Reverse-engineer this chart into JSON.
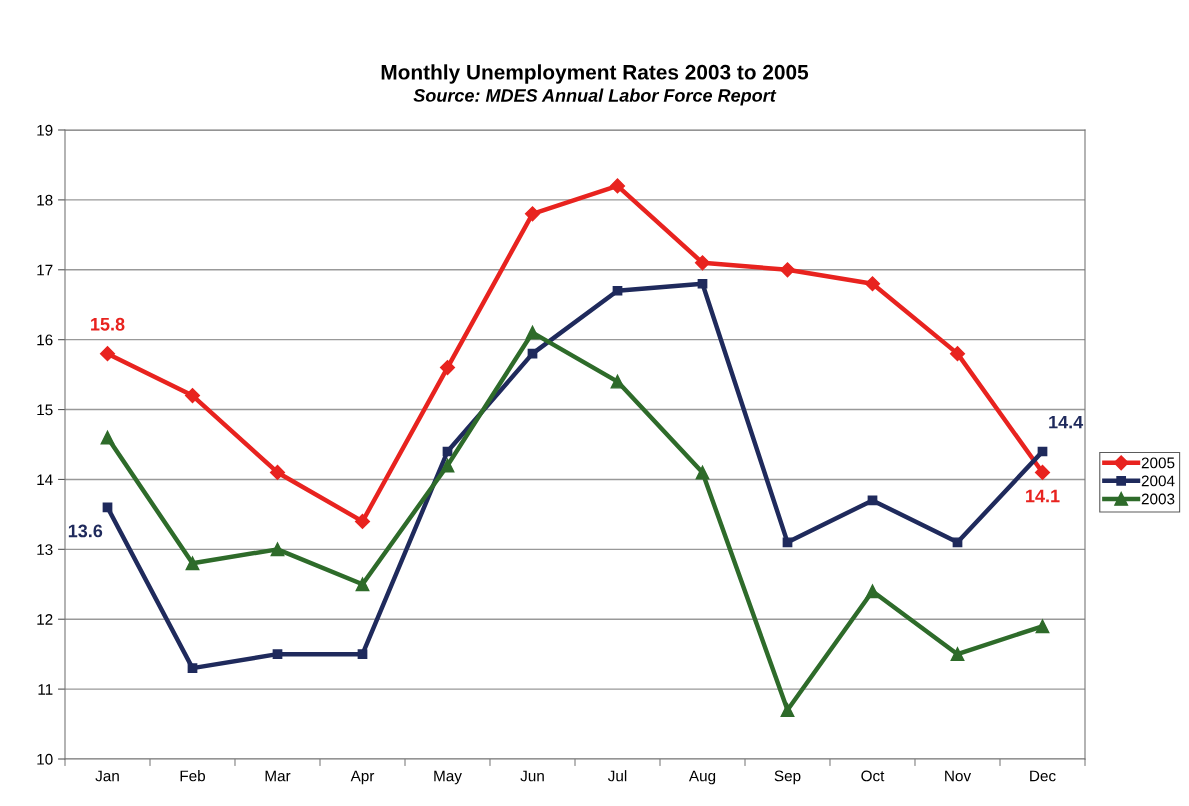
{
  "chart_data": {
    "type": "line",
    "title": "Monthly Unemployment Rates 2003 to 2005",
    "annotations": [
      "Source: MDES Annual Labor Force Report"
    ],
    "categories": [
      "Jan",
      "Feb",
      "Mar",
      "Apr",
      "May",
      "Jun",
      "Jul",
      "Aug",
      "Sep",
      "Oct",
      "Nov",
      "Dec"
    ],
    "series": [
      {
        "name": "2005",
        "color": "#e8231f",
        "marker": "diamond",
        "values": [
          15.8,
          15.2,
          14.1,
          13.4,
          15.6,
          17.8,
          18.2,
          17.1,
          17.0,
          16.8,
          15.8,
          14.1
        ],
        "value_labels": [
          "15.8",
          null,
          null,
          null,
          null,
          null,
          null,
          null,
          null,
          null,
          null,
          "14.1"
        ]
      },
      {
        "name": "2004",
        "color": "#1f2a5c",
        "marker": "square",
        "values": [
          13.6,
          11.3,
          11.5,
          11.5,
          14.4,
          15.8,
          16.7,
          16.8,
          13.1,
          13.7,
          13.1,
          14.4
        ],
        "value_labels": [
          "13.6",
          null,
          null,
          null,
          null,
          null,
          null,
          null,
          null,
          null,
          null,
          "14.4"
        ]
      },
      {
        "name": "2003",
        "color": "#2e6b2a",
        "marker": "triangle",
        "values": [
          14.6,
          12.8,
          13.0,
          12.5,
          14.2,
          16.1,
          15.4,
          14.1,
          10.7,
          12.4,
          11.5,
          11.9
        ]
      }
    ],
    "ylim": [
      10,
      19
    ],
    "yticks": [
      10,
      11,
      12,
      13,
      14,
      15,
      16,
      17,
      18,
      19
    ],
    "grid": "y",
    "legend": "right",
    "line_style": "solid"
  }
}
